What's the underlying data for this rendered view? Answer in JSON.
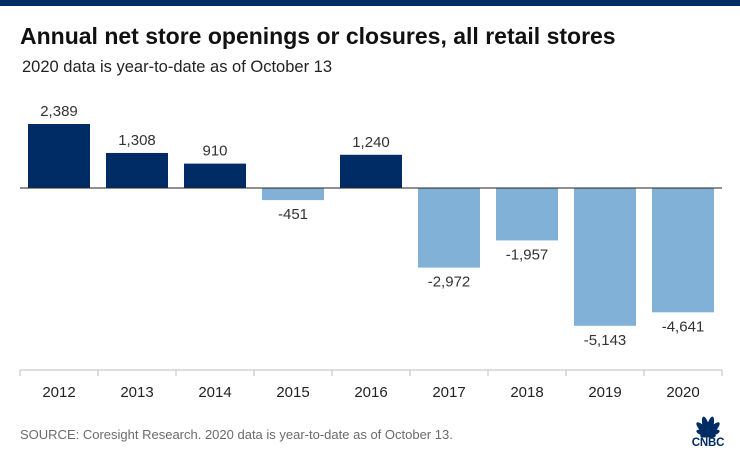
{
  "header": {
    "title": "Annual net store openings or closures, all retail stores",
    "subtitle": "2020 data is year-to-date as of October 13"
  },
  "footer": {
    "source": "SOURCE: Coresight Research. 2020 data is year-to-date as of October 13.",
    "logo_text": "CNBC"
  },
  "colors": {
    "positive": "#002c66",
    "negative": "#81b1d6",
    "topbar": "#002c66"
  },
  "chart_data": {
    "type": "bar",
    "categories": [
      "2012",
      "2013",
      "2014",
      "2015",
      "2016",
      "2017",
      "2018",
      "2019",
      "2020"
    ],
    "values": [
      2389,
      1308,
      910,
      -451,
      1240,
      -2972,
      -1957,
      -5143,
      -4641
    ],
    "labels": [
      "2,389",
      "1,308",
      "910",
      "-451",
      "1,240",
      "-2,972",
      "-1,957",
      "-5,143",
      "-4,641"
    ],
    "title": "Annual net store openings or closures, all retail stores",
    "subtitle": "2020 data is year-to-date as of October 13",
    "xlabel": "",
    "ylabel": "",
    "ylim": [
      -5143,
      2389
    ],
    "grid": false,
    "legend": "none"
  }
}
